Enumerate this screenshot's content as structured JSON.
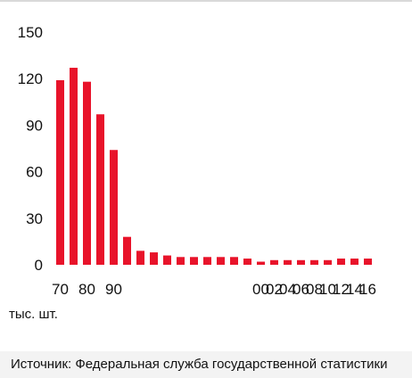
{
  "chart_data": {
    "type": "bar",
    "x": [
      "70",
      "72",
      "74",
      "76",
      "78",
      "80",
      "82",
      "84",
      "86",
      "88",
      "90",
      "92",
      "94",
      "96",
      "98",
      "00",
      "02",
      "04",
      "06",
      "08",
      "10",
      "12",
      "14",
      "16"
    ],
    "values": [
      119,
      127,
      118,
      97,
      74,
      18,
      9,
      8,
      6,
      5,
      5,
      5,
      5,
      5,
      4,
      2,
      3,
      3,
      3,
      3,
      3,
      4,
      4,
      4
    ],
    "xtick_labels": [
      "70",
      "80",
      "90",
      "00",
      "02",
      "04",
      "06",
      "08",
      "10",
      "12",
      "14",
      "16"
    ],
    "yticks": [
      0,
      30,
      60,
      90,
      120,
      150
    ],
    "ylim": [
      0,
      150
    ],
    "ylabel": "",
    "xlabel": "",
    "title": "",
    "unit": "тыс. шт.",
    "grid": false,
    "bar_color": "#e8132a"
  },
  "footer": {
    "source": "Источник: Федеральная служба государственной статистики"
  }
}
